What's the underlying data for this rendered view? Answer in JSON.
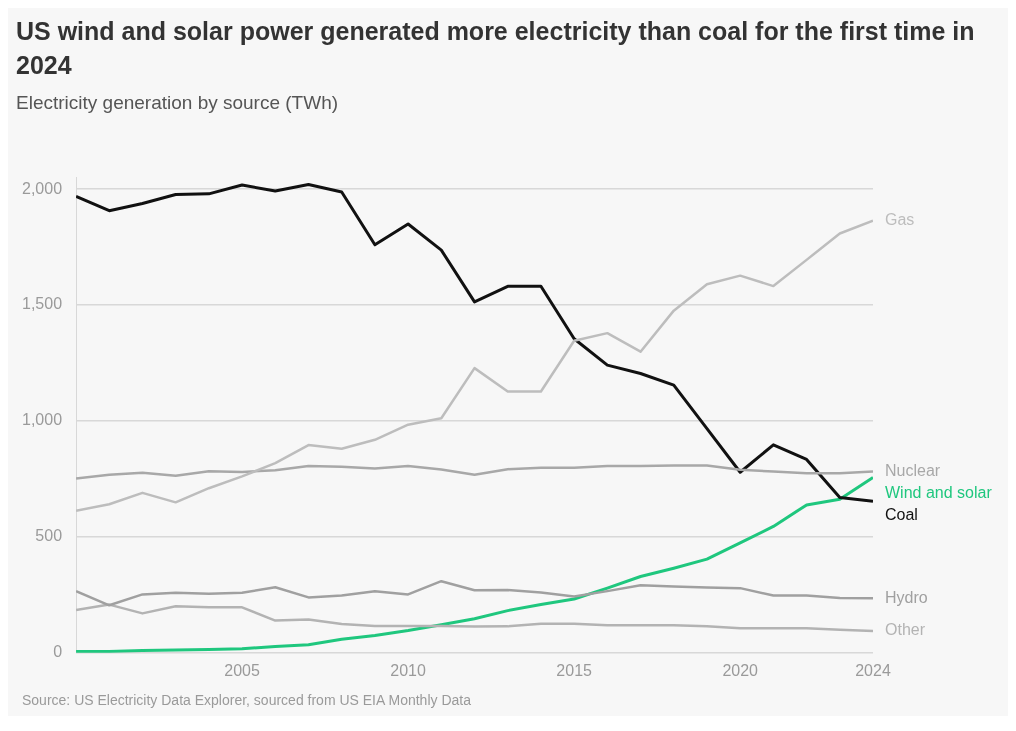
{
  "chart_data": {
    "type": "line",
    "title": "US wind and solar power generated more electricity than coal for the first time in 2024",
    "subtitle": "Electricity generation by source (TWh)",
    "x": [
      2000,
      2001,
      2002,
      2003,
      2004,
      2005,
      2006,
      2007,
      2008,
      2009,
      2010,
      2011,
      2012,
      2013,
      2014,
      2015,
      2016,
      2017,
      2018,
      2019,
      2020,
      2021,
      2022,
      2023,
      2024
    ],
    "series": [
      {
        "name": "Gas",
        "color": "#bdbdbd",
        "values": [
          613,
          641,
          690,
          649,
          710,
          761,
          818,
          896,
          880,
          919,
          984,
          1012,
          1228,
          1127,
          1127,
          1346,
          1379,
          1299,
          1476,
          1590,
          1627,
          1582,
          1695,
          1809,
          1864
        ]
      },
      {
        "name": "Nuclear",
        "color": "#a8a8a8",
        "values": [
          752,
          768,
          777,
          764,
          783,
          780,
          788,
          806,
          803,
          795,
          806,
          791,
          768,
          792,
          798,
          798,
          806,
          806,
          808,
          808,
          790,
          782,
          775,
          775,
          782
        ]
      },
      {
        "name": "Hydro",
        "color": "#a0a0a0",
        "values": [
          266,
          205,
          252,
          259,
          255,
          259,
          283,
          239,
          247,
          266,
          252,
          309,
          270,
          271,
          260,
          243,
          266,
          291,
          286,
          282,
          279,
          247,
          247,
          236,
          235
        ]
      },
      {
        "name": "Other",
        "color": "#b3b3b3",
        "values": [
          185,
          208,
          170,
          201,
          196,
          196,
          139,
          144,
          124,
          116,
          116,
          116,
          113,
          114,
          125,
          125,
          119,
          119,
          119,
          114,
          106,
          106,
          106,
          99,
          94
        ]
      },
      {
        "name": "Coal",
        "color": "#111111",
        "values": [
          1969,
          1907,
          1938,
          1977,
          1980,
          2018,
          1992,
          2020,
          1988,
          1760,
          1850,
          1737,
          1514,
          1581,
          1581,
          1355,
          1241,
          1205,
          1155,
          967,
          779,
          897,
          834,
          670,
          654
        ]
      },
      {
        "name": "Wind and solar",
        "color": "#1fc77e",
        "values": [
          6,
          6,
          10,
          12,
          14,
          18,
          27,
          35,
          58,
          75,
          96,
          121,
          147,
          182,
          208,
          232,
          279,
          329,
          365,
          404,
          474,
          545,
          638,
          662,
          756
        ]
      }
    ],
    "xlim": [
      2000,
      2024
    ],
    "xticks": [
      2005,
      2010,
      2015,
      2020,
      2024
    ],
    "ylim": [
      0,
      2050
    ],
    "yticks": [
      0,
      500,
      {
        "value": 1000,
        "label": "1,000"
      },
      {
        "value": 1500,
        "label": "1,500"
      },
      {
        "value": 2000,
        "label": "2,000"
      }
    ],
    "grid": "y",
    "legend": false,
    "marker": "none",
    "line_style": "solid",
    "annotations": [
      "Source: US Electricity Data Explorer, sourced from US EIA Monthly Data"
    ]
  }
}
